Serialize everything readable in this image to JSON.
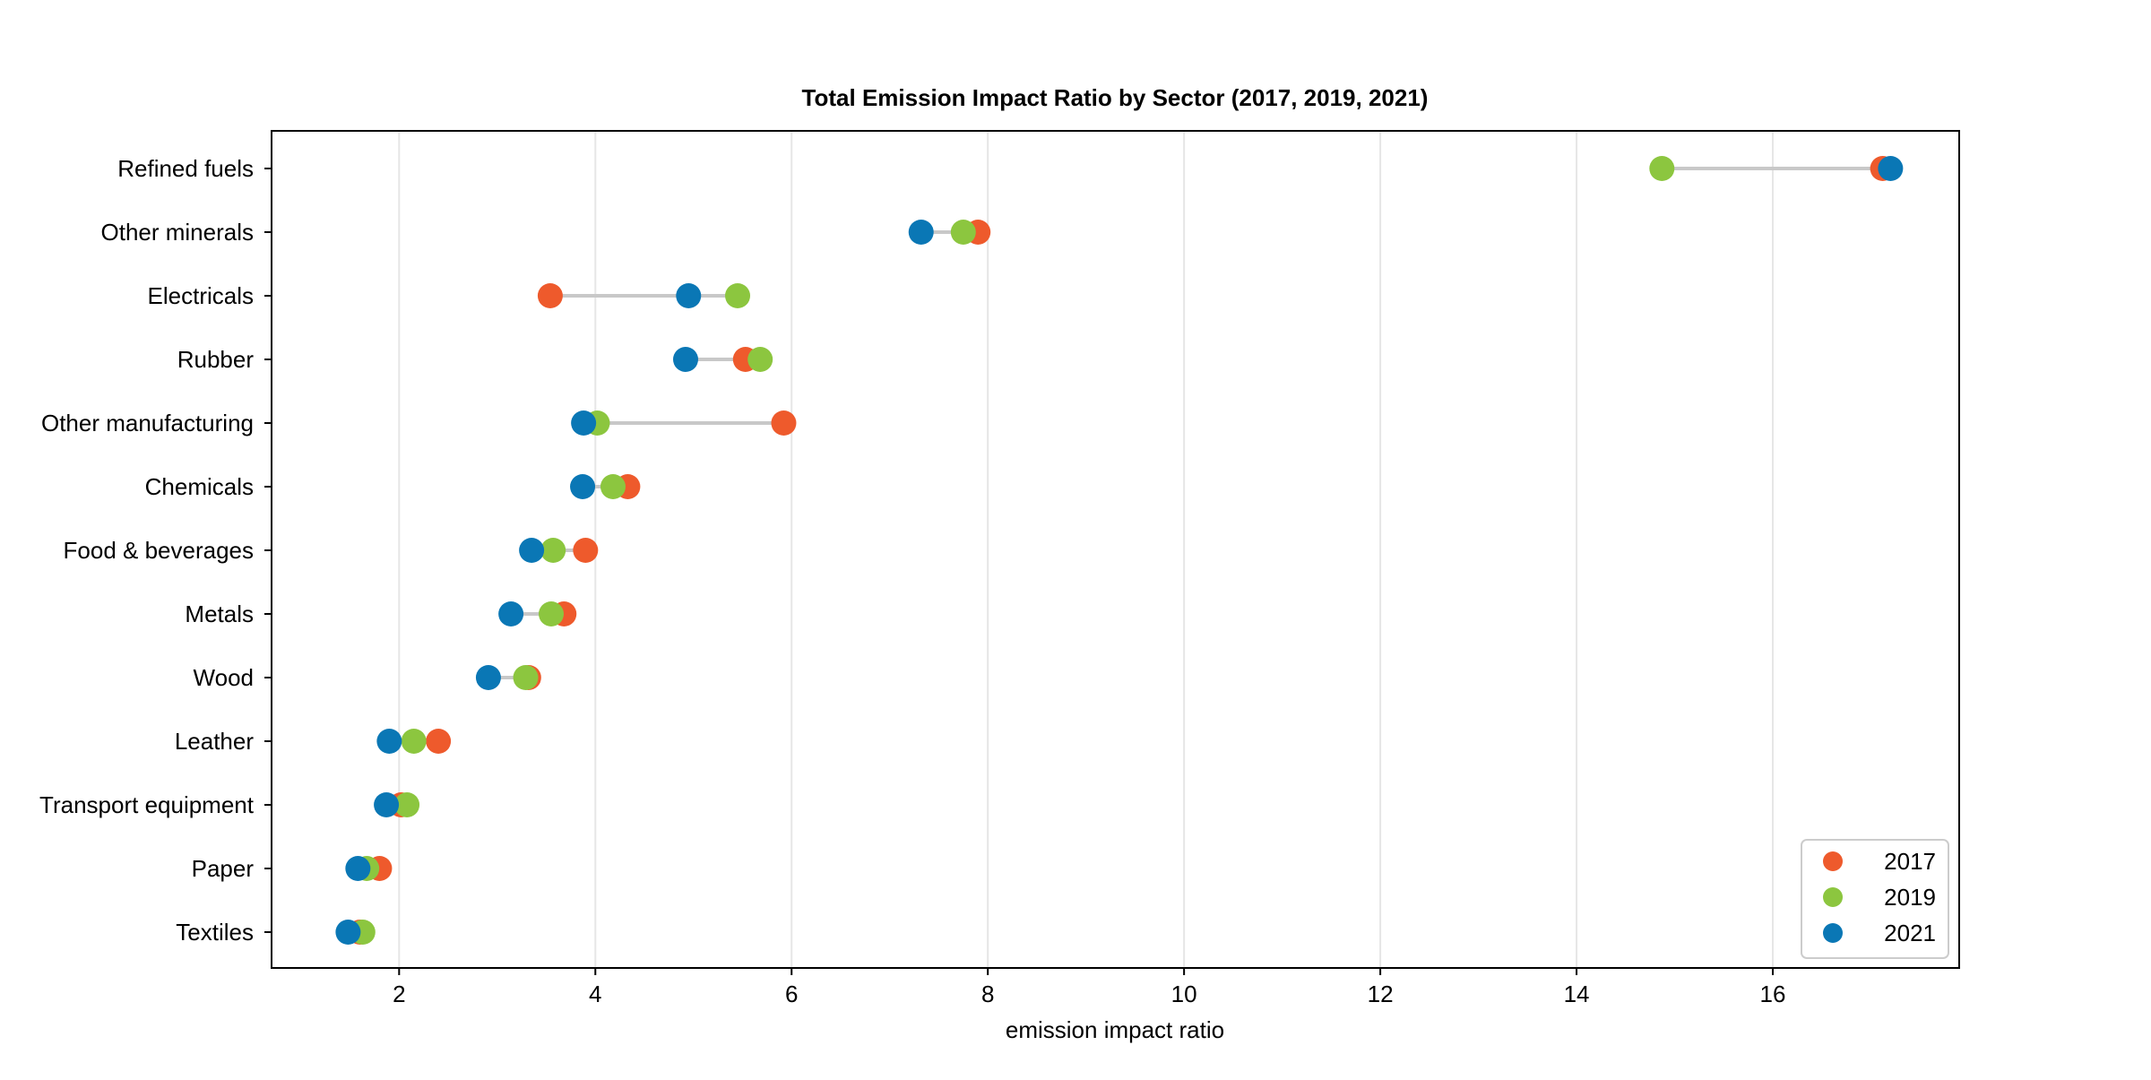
{
  "chart_data": {
    "type": "scatter",
    "subtype": "dumbbell",
    "title": "Total Emission Impact Ratio by Sector (2017, 2019, 2021)",
    "xlabel": "emission impact ratio",
    "ylabel": "",
    "xlim": [
      0.7,
      17.9
    ],
    "xticks": [
      2,
      4,
      6,
      8,
      10,
      12,
      14,
      16
    ],
    "grid": "vertical",
    "legend_position": "bottom-right",
    "categories": [
      "Refined fuels",
      "Other minerals",
      "Electricals",
      "Rubber",
      "Other manufacturing",
      "Chemicals",
      "Food & beverages",
      "Metals",
      "Wood",
      "Leather",
      "Transport equipment",
      "Paper",
      "Textiles"
    ],
    "series": [
      {
        "name": "2017",
        "color": "#ee5a2c",
        "values": [
          17.12,
          7.9,
          3.54,
          5.53,
          5.92,
          4.33,
          3.9,
          3.68,
          3.32,
          2.4,
          2.02,
          1.8,
          1.6
        ]
      },
      {
        "name": "2019",
        "color": "#8cc63f",
        "values": [
          14.87,
          7.75,
          5.45,
          5.68,
          4.02,
          4.18,
          3.57,
          3.55,
          3.29,
          2.15,
          2.08,
          1.67,
          1.63
        ]
      },
      {
        "name": "2021",
        "color": "#0a77b5",
        "values": [
          17.2,
          7.32,
          4.95,
          4.92,
          3.88,
          3.87,
          3.35,
          3.14,
          2.91,
          1.9,
          1.87,
          1.58,
          1.48
        ]
      }
    ]
  }
}
